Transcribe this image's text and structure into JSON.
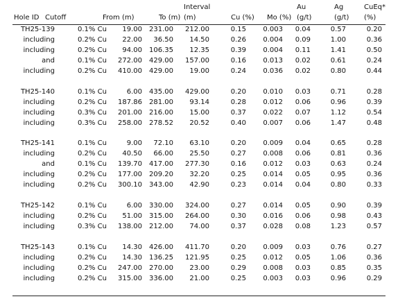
{
  "table": {
    "headers": [
      [
        "Hole ID"
      ],
      [
        "Cutoff"
      ],
      [
        "From (m)"
      ],
      [
        "To (m)"
      ],
      [
        "Interval",
        "(m)"
      ],
      [
        "Cu (%)"
      ],
      [
        "Mo (%)"
      ],
      [
        "Au",
        "(g/t)"
      ],
      [
        "Ag",
        "(g/t)"
      ],
      [
        "CuEq*",
        "(%)"
      ]
    ],
    "groups": [
      {
        "rows": [
          [
            "TH25-139",
            "0.1% Cu",
            "19.00",
            "231.00",
            "212.00",
            "0.15",
            "0.003",
            "0.04",
            "0.57",
            "0.20"
          ],
          [
            "including",
            "0.2% Cu",
            "22.00",
            "36.50",
            "14.50",
            "0.26",
            "0.004",
            "0.09",
            "1.00",
            "0.36"
          ],
          [
            "including",
            "0.2% Cu",
            "94.00",
            "106.35",
            "12.35",
            "0.39",
            "0.004",
            "0.11",
            "1.41",
            "0.50"
          ],
          [
            "and",
            "0.1% Cu",
            "272.00",
            "429.00",
            "157.00",
            "0.16",
            "0.013",
            "0.02",
            "0.61",
            "0.24"
          ],
          [
            "including",
            "0.2% Cu",
            "410.00",
            "429.00",
            "19.00",
            "0.24",
            "0.036",
            "0.02",
            "0.80",
            "0.44"
          ]
        ]
      },
      {
        "rows": [
          [
            "TH25-140",
            "0.1% Cu",
            "6.00",
            "435.00",
            "429.00",
            "0.20",
            "0.010",
            "0.03",
            "0.71",
            "0.28"
          ],
          [
            "including",
            "0.2% Cu",
            "187.86",
            "281.00",
            "93.14",
            "0.28",
            "0.012",
            "0.06",
            "0.96",
            "0.39"
          ],
          [
            "including",
            "0.3% Cu",
            "201.00",
            "216.00",
            "15.00",
            "0.37",
            "0.022",
            "0.07",
            "1.12",
            "0.54"
          ],
          [
            "including",
            "0.3% Cu",
            "258.00",
            "278.52",
            "20.52",
            "0.40",
            "0.007",
            "0.06",
            "1.47",
            "0.48"
          ]
        ]
      },
      {
        "rows": [
          [
            "TH25-141",
            "0.1% Cu",
            "9.00",
            "72.10",
            "63.10",
            "0.20",
            "0.009",
            "0.04",
            "0.65",
            "0.28"
          ],
          [
            "including",
            "0.2% Cu",
            "40.50",
            "66.00",
            "25.50",
            "0.27",
            "0.008",
            "0.06",
            "0.81",
            "0.36"
          ],
          [
            "and",
            "0.1% Cu",
            "139.70",
            "417.00",
            "277.30",
            "0.16",
            "0.012",
            "0.03",
            "0.63",
            "0.24"
          ],
          [
            "including",
            "0.2% Cu",
            "177.00",
            "209.20",
            "32.20",
            "0.25",
            "0.014",
            "0.05",
            "0.95",
            "0.36"
          ],
          [
            "including",
            "0.2% Cu",
            "300.10",
            "343.00",
            "42.90",
            "0.23",
            "0.014",
            "0.04",
            "0.80",
            "0.33"
          ]
        ]
      },
      {
        "rows": [
          [
            "TH25-142",
            "0.1% Cu",
            "6.00",
            "330.00",
            "324.00",
            "0.27",
            "0.014",
            "0.05",
            "0.90",
            "0.39"
          ],
          [
            "including",
            "0.2% Cu",
            "51.00",
            "315.00",
            "264.00",
            "0.30",
            "0.016",
            "0.06",
            "0.98",
            "0.43"
          ],
          [
            "including",
            "0.3% Cu",
            "138.00",
            "212.00",
            "74.00",
            "0.37",
            "0.028",
            "0.08",
            "1.23",
            "0.57"
          ]
        ]
      },
      {
        "rows": [
          [
            "TH25-143",
            "0.1% Cu",
            "14.30",
            "426.00",
            "411.70",
            "0.20",
            "0.009",
            "0.03",
            "0.76",
            "0.27"
          ],
          [
            "including",
            "0.2% Cu",
            "14.30",
            "136.25",
            "121.95",
            "0.25",
            "0.012",
            "0.05",
            "1.06",
            "0.36"
          ],
          [
            "including",
            "0.2% Cu",
            "247.00",
            "270.00",
            "23.00",
            "0.29",
            "0.008",
            "0.03",
            "0.85",
            "0.35"
          ],
          [
            "including",
            "0.2% Cu",
            "315.00",
            "336.00",
            "21.00",
            "0.25",
            "0.003",
            "0.03",
            "0.96",
            "0.29"
          ]
        ]
      }
    ]
  }
}
